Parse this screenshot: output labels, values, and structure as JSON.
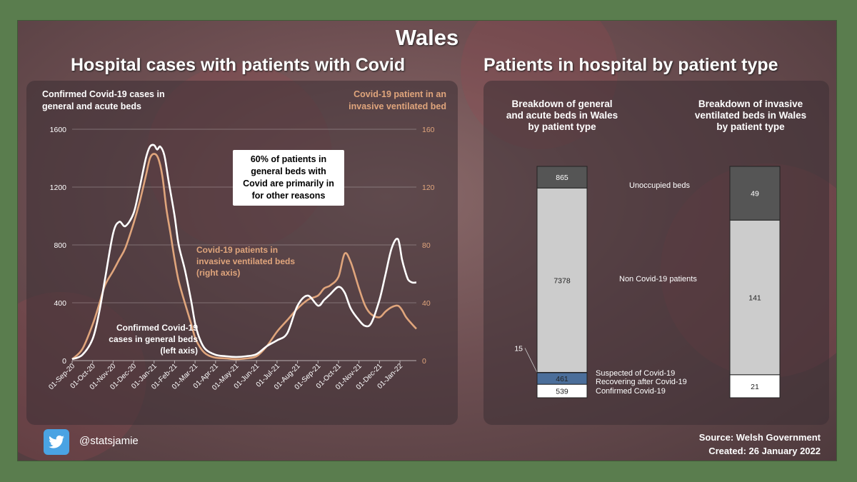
{
  "header": {
    "title": "Wales",
    "left_subtitle": "Hospital cases with patients with Covid",
    "right_subtitle": "Patients in hospital by patient type"
  },
  "footer": {
    "handle": "@statsjamie",
    "source": "Source: Welsh Government",
    "created": "Created: 26 January 2022"
  },
  "colors": {
    "general_beds": "#ffffff",
    "ventilated_beds": "#e0a57c",
    "unoccupied": "#555555",
    "non_covid": "#cccccc",
    "suspected": "#8a9fc0",
    "recovering": "#4b6e9a",
    "confirmed": "#ffffff"
  },
  "chart_data": [
    {
      "type": "line",
      "left_axis_title": "Confirmed Covid-19 cases in general and acute beds",
      "right_axis_title": "Covid-19 patient in an invasive ventilated bed",
      "y_left_ticks": [
        "0",
        "400",
        "800",
        "1200",
        "1600"
      ],
      "y_right_ticks": [
        "0",
        "40",
        "80",
        "120",
        "160"
      ],
      "ylim_left": [
        0,
        1600
      ],
      "ylim_right": [
        0,
        160
      ],
      "x_labels": [
        "01-Sep-20",
        "01-Oct-20",
        "01-Nov-20",
        "01-Dec-20",
        "01-Jan-21",
        "01-Feb-21",
        "01-Mar-21",
        "01-Apr-21",
        "01-May-21",
        "01-Jun-21",
        "01-Jul-21",
        "01-Aug-21",
        "01-Sep-21",
        "01-Oct-21",
        "01-Nov-21",
        "01-Dec-21",
        "01-Jan-22"
      ],
      "callout": "60% of patients in general beds with Covid are primarily in for other reasons",
      "series": [
        {
          "name": "Confirmed Covid-19 cases in general beds (left axis)",
          "axis": "left",
          "x_months": [
            0,
            0.5,
            1,
            1.3,
            1.6,
            2,
            2.3,
            2.6,
            3,
            3.3,
            3.6,
            3.8,
            4,
            4.15,
            4.3,
            4.5,
            4.7,
            5,
            5.2,
            5.5,
            5.8,
            6,
            6.2,
            6.5,
            7,
            7.5,
            8,
            8.5,
            9,
            9.5,
            10,
            10.5,
            11,
            11.5,
            12,
            12.3,
            12.6,
            13,
            13.3,
            13.6,
            14,
            14.3,
            14.6,
            15,
            15.3,
            15.6,
            15.9,
            16.1,
            16.25,
            16.4,
            16.6,
            16.8
          ],
          "values": [
            10,
            40,
            150,
            320,
            560,
            880,
            960,
            930,
            1020,
            1200,
            1400,
            1480,
            1490,
            1460,
            1480,
            1420,
            1250,
            1000,
            800,
            630,
            420,
            260,
            160,
            80,
            40,
            30,
            25,
            30,
            45,
            100,
            140,
            190,
            380,
            450,
            380,
            420,
            460,
            510,
            470,
            360,
            280,
            240,
            260,
            420,
            600,
            780,
            840,
            700,
            620,
            560,
            540,
            540
          ]
        },
        {
          "name": "Covid-19 patients in invasive ventilated beds (right axis)",
          "axis": "right",
          "x_months": [
            0,
            0.5,
            1,
            1.3,
            1.6,
            2,
            2.3,
            2.6,
            3,
            3.3,
            3.6,
            3.8,
            4,
            4.2,
            4.4,
            4.6,
            4.8,
            5,
            5.2,
            5.5,
            5.8,
            6,
            6.3,
            6.6,
            7,
            7.5,
            8,
            8.5,
            9,
            9.5,
            10,
            10.5,
            11,
            11.5,
            12,
            12.3,
            12.6,
            13,
            13.3,
            13.6,
            14,
            14.3,
            14.6,
            15,
            15.3,
            15.6,
            15.9,
            16.1,
            16.3,
            16.6,
            16.8
          ],
          "values": [
            1,
            8,
            25,
            38,
            52,
            62,
            70,
            78,
            95,
            110,
            128,
            140,
            143,
            140,
            128,
            105,
            88,
            70,
            55,
            40,
            26,
            16,
            8,
            4,
            2,
            1.5,
            1,
            1.5,
            3,
            10,
            20,
            28,
            36,
            42,
            45,
            50,
            52,
            58,
            74,
            68,
            50,
            38,
            32,
            30,
            34,
            37,
            38,
            35,
            30,
            25,
            22
          ]
        }
      ]
    },
    {
      "type": "bar",
      "title": "Breakdown of general and acute beds in Wales by patient type",
      "stacked": true,
      "segments": [
        {
          "name": "Confirmed Covid-19",
          "value": 539,
          "label": "539"
        },
        {
          "name": "Recovering after Covid-19",
          "value": 461,
          "label": "461"
        },
        {
          "name": "Suspected of Covid-19",
          "value": 15,
          "label": "15"
        },
        {
          "name": "Non Covid-19 patients",
          "value": 7378,
          "label": "7378"
        },
        {
          "name": "Unoccupied beds",
          "value": 865,
          "label": "865"
        }
      ]
    },
    {
      "type": "bar",
      "title": "Breakdown of invasive ventilated beds in Wales by patient type",
      "stacked": true,
      "segments": [
        {
          "name": "Confirmed Covid-19",
          "value": 21,
          "label": "21"
        },
        {
          "name": "Non Covid-19 patients",
          "value": 141,
          "label": "141"
        },
        {
          "name": "Unoccupied beds",
          "value": 49,
          "label": "49"
        }
      ]
    }
  ],
  "annotations": {
    "vent_line_label": "Covid-19 patients in invasive ventilated beds (right axis)",
    "general_line_label_1": "Confirmed Covid-19",
    "general_line_label_2": "cases in general beds",
    "general_line_label_3": "(left axis)",
    "vent_label_1": "Covid-19 patients in",
    "vent_label_2": "invasive ventilated beds",
    "vent_label_3": "(right axis)",
    "left_title_1": "Confirmed Covid-19 cases in",
    "left_title_2": "general and acute beds",
    "right_title_1": "Covid-19 patient in an",
    "right_title_2": "invasive ventilated bed",
    "callout_1": "60% of patients in",
    "callout_2": "general beds with",
    "callout_3": "Covid are primarily in",
    "callout_4": "for other reasons",
    "bar1_title_1": "Breakdown of general",
    "bar1_title_2": "and acute beds in Wales",
    "bar1_title_3": "by patient type",
    "bar2_title_1": "Breakdown of invasive",
    "bar2_title_2": "ventilated beds in Wales",
    "bar2_title_3": "by patient type",
    "legend_unoccupied": "Unoccupied beds",
    "legend_noncovid": "Non Covid-19 patients",
    "legend_suspected": "Suspected of Covid-19",
    "legend_recovering": "Recovering after Covid-19",
    "legend_confirmed": "Confirmed Covid-19"
  }
}
